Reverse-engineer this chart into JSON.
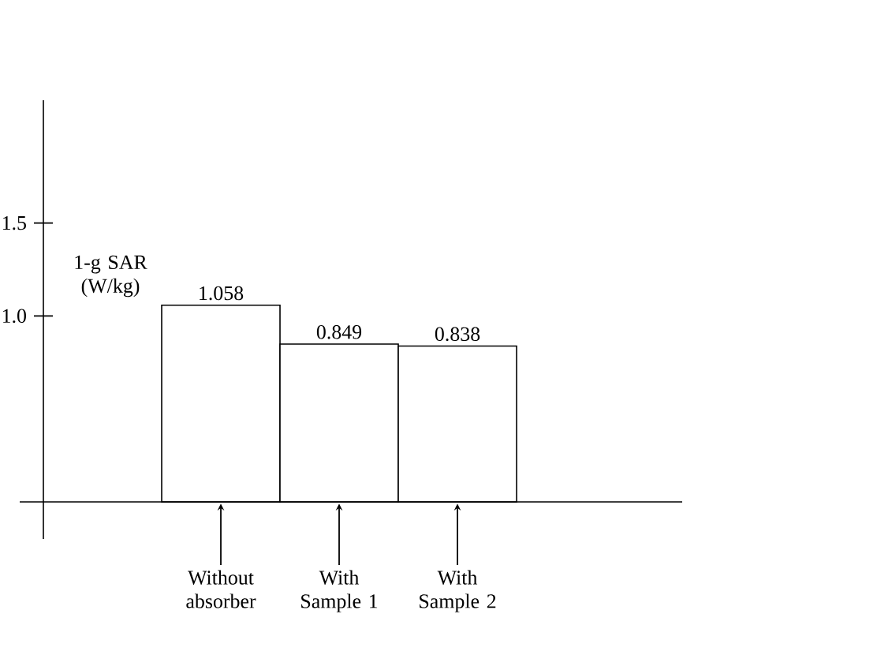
{
  "chart_data": {
    "type": "bar",
    "categories": [
      "Without absorber",
      "With Sample 1",
      "With Sample 2"
    ],
    "values": [
      1.058,
      0.849,
      0.838
    ],
    "value_labels": [
      "1.058",
      "0.849",
      "0.838"
    ],
    "color": "#ffffff",
    "ylabel": "1-g SAR (W/kg)",
    "ylim": [
      -0.2,
      2.16
    ],
    "yticks": [
      {
        "value": 1.0,
        "label": "1.0"
      },
      {
        "value": 1.5,
        "label": "1.5"
      }
    ],
    "tick_labels": "y"
  }
}
